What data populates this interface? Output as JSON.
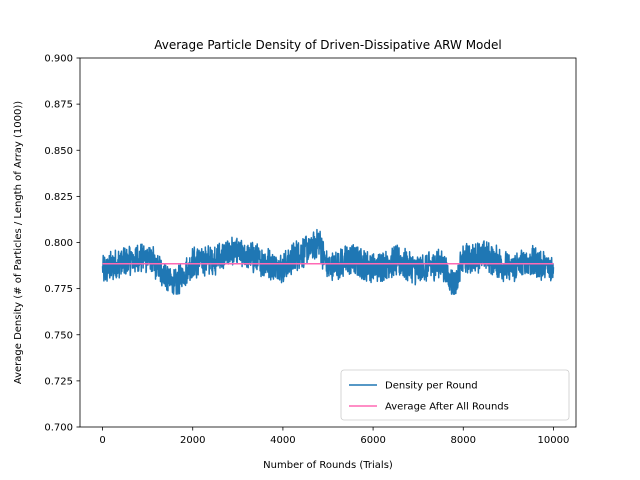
{
  "chart_data": {
    "type": "line",
    "title": "Average Particle Density of Driven-Dissipative ARW Model",
    "xlabel": "Number of Rounds (Trials)",
    "ylabel": "Average Density (# of Particles / Length of Array (1000))",
    "xlim": [
      -500,
      10500
    ],
    "ylim": [
      0.7,
      0.9
    ],
    "x_ticks": [
      0,
      2000,
      4000,
      6000,
      8000,
      10000
    ],
    "x_tick_labels": [
      "0",
      "2000",
      "4000",
      "6000",
      "8000",
      "10000"
    ],
    "y_ticks": [
      0.7,
      0.725,
      0.75,
      0.775,
      0.8,
      0.825,
      0.85,
      0.875,
      0.9
    ],
    "y_tick_labels": [
      "0.700",
      "0.725",
      "0.750",
      "0.775",
      "0.800",
      "0.825",
      "0.850",
      "0.875",
      "0.900"
    ],
    "grid": false,
    "legend_position": "lower-right",
    "series": [
      {
        "name": "Density per Round",
        "color": "#1f77b4",
        "x_range": [
          0,
          10000
        ],
        "mean": 0.7885,
        "x_sample": [
          0,
          500,
          1000,
          1600,
          2000,
          2500,
          2900,
          3500,
          4000,
          4300,
          4800,
          5000,
          5500,
          6000,
          6500,
          7000,
          7500,
          7800,
          8000,
          8500,
          9000,
          9500,
          10000
        ],
        "y_sample": [
          0.785,
          0.79,
          0.792,
          0.777,
          0.789,
          0.791,
          0.795,
          0.79,
          0.786,
          0.793,
          0.8,
          0.786,
          0.791,
          0.786,
          0.79,
          0.785,
          0.789,
          0.776,
          0.791,
          0.793,
          0.786,
          0.79,
          0.786
        ],
        "approx_min": 0.772,
        "approx_max": 0.807
      },
      {
        "name": "Average After All Rounds",
        "color": "#ff69b4",
        "x": [
          0,
          10000
        ],
        "values": [
          0.7885,
          0.7885
        ]
      }
    ]
  }
}
